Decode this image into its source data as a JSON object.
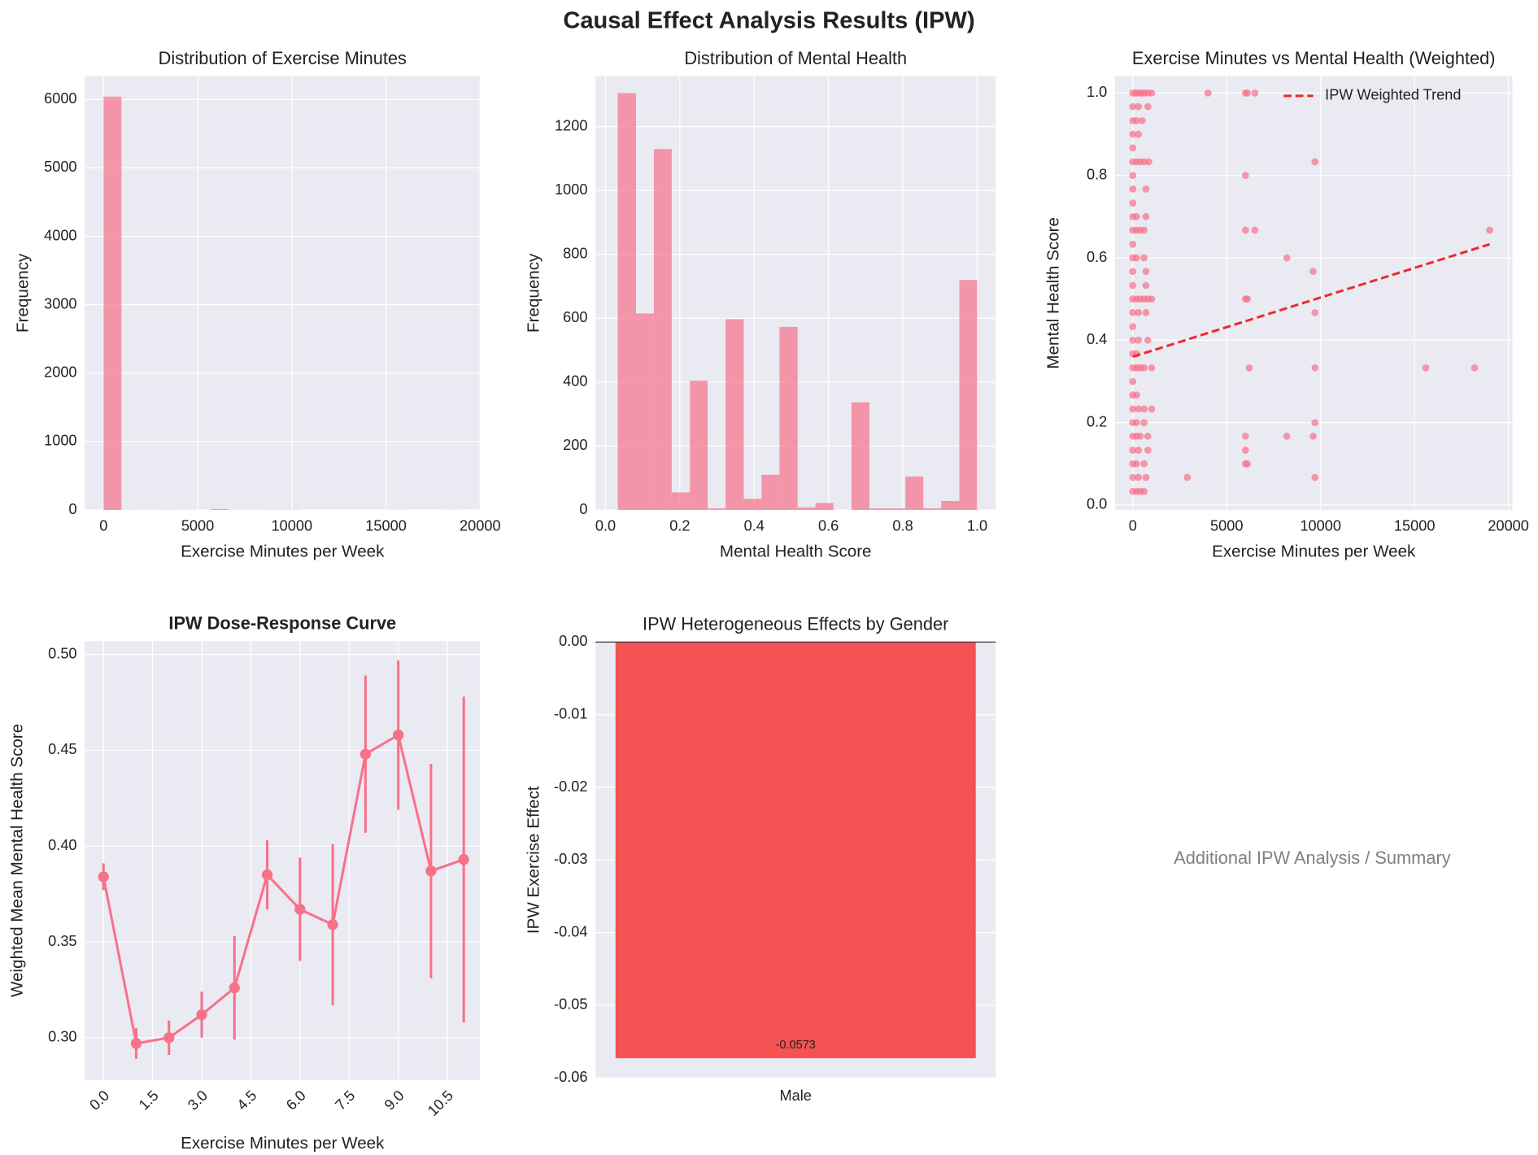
{
  "figure_title": "Causal Effect Analysis Results (IPW)",
  "annotation_panel": {
    "text": "Additional IPW Analysis / Summary"
  },
  "chart_data": [
    {
      "type": "histogram",
      "title": "Distribution of Exercise Minutes",
      "xlabel": "Exercise Minutes per Week",
      "ylabel": "Frequency",
      "bins": [
        0,
        950,
        1900,
        2850,
        3800,
        4750,
        5700,
        6650,
        7600,
        8550,
        9500,
        10450,
        11400,
        12350,
        13300,
        14250,
        15200,
        16150,
        17100,
        18050,
        19000
      ],
      "counts": [
        6040,
        2,
        1,
        2,
        1,
        0,
        12,
        1,
        1,
        3,
        3,
        0,
        0,
        0,
        0,
        0,
        1,
        0,
        0,
        1
      ],
      "color": "#f77189",
      "xlim": [
        -995,
        20000
      ],
      "ylim": [
        0,
        6340
      ],
      "xticks": [
        0,
        5000,
        10000,
        15000,
        20000
      ],
      "yticks": [
        0,
        1000,
        2000,
        3000,
        4000,
        5000,
        6000
      ],
      "grid": true
    },
    {
      "type": "histogram",
      "title": "Distribution of Mental Health",
      "xlabel": "Mental Health Score",
      "ylabel": "Frequency",
      "bins": [
        0.033,
        0.082,
        0.13,
        0.178,
        0.227,
        0.275,
        0.323,
        0.372,
        0.42,
        0.468,
        0.517,
        0.565,
        0.613,
        0.662,
        0.71,
        0.758,
        0.807,
        0.855,
        0.903,
        0.952,
        1.0
      ],
      "counts": [
        1305,
        615,
        1130,
        55,
        405,
        5,
        597,
        35,
        110,
        573,
        8,
        22,
        0,
        337,
        5,
        5,
        105,
        5,
        28,
        720
      ],
      "color": "#f77189",
      "xlim": [
        -0.027,
        1.05
      ],
      "ylim": [
        0,
        1358
      ],
      "xticks": [
        {
          "value": 0,
          "label": "0.0"
        },
        0.2,
        0.4,
        0.6,
        0.8,
        {
          "value": 1,
          "label": "1.0"
        }
      ],
      "yticks": [
        0,
        200,
        400,
        600,
        800,
        1000,
        1200
      ],
      "grid": true
    },
    {
      "type": "scatter",
      "title": "Exercise Minutes vs Mental Health (Weighted)",
      "xlabel": "Exercise Minutes per Week",
      "ylabel": "Mental Health Score",
      "series": [
        {
          "type": "scatter",
          "color": "#f77189",
          "x": [
            0,
            150,
            300,
            450,
            600,
            800,
            1000,
            0,
            300,
            800,
            0,
            200,
            500,
            0,
            300,
            0,
            0,
            200,
            400,
            600,
            850,
            0,
            0,
            700,
            0,
            0,
            200,
            700,
            0,
            200,
            400,
            600,
            0,
            0,
            200,
            600,
            0,
            700,
            0,
            700,
            0,
            200,
            400,
            600,
            800,
            1000,
            0,
            300,
            700,
            0,
            0,
            300,
            800,
            0,
            200,
            0,
            200,
            400,
            600,
            1000,
            0,
            0,
            200,
            0,
            300,
            600,
            1000,
            0,
            200,
            600,
            0,
            200,
            400,
            800,
            0,
            300,
            800,
            0,
            200,
            600,
            0,
            300,
            700,
            0,
            200,
            400,
            600,
            4000,
            6000,
            6100,
            6500,
            6000,
            9700,
            6000,
            6500,
            8200,
            9600,
            9700,
            6000,
            6100,
            6200,
            9700,
            15600,
            18200,
            19000,
            9700,
            6000,
            8200,
            9600,
            6000,
            6000,
            6100,
            2900,
            9700
          ],
          "values": [
            1,
            1,
            1,
            1,
            1,
            1,
            1,
            0.967,
            0.967,
            0.967,
            0.933,
            0.933,
            0.933,
            0.9,
            0.9,
            0.867,
            0.833,
            0.833,
            0.833,
            0.833,
            0.833,
            0.8,
            0.767,
            0.767,
            0.733,
            0.7,
            0.7,
            0.7,
            0.667,
            0.667,
            0.667,
            0.667,
            0.633,
            0.6,
            0.6,
            0.6,
            0.567,
            0.567,
            0.533,
            0.533,
            0.5,
            0.5,
            0.5,
            0.5,
            0.5,
            0.5,
            0.467,
            0.467,
            0.467,
            0.433,
            0.4,
            0.4,
            0.4,
            0.367,
            0.367,
            0.333,
            0.333,
            0.333,
            0.333,
            0.333,
            0.3,
            0.267,
            0.267,
            0.233,
            0.233,
            0.233,
            0.233,
            0.2,
            0.2,
            0.2,
            0.167,
            0.167,
            0.167,
            0.167,
            0.133,
            0.133,
            0.133,
            0.1,
            0.1,
            0.1,
            0.067,
            0.067,
            0.067,
            0.033,
            0.033,
            0.033,
            0.033,
            1,
            1,
            1,
            1,
            0.8,
            0.833,
            0.667,
            0.667,
            0.6,
            0.567,
            0.467,
            0.5,
            0.5,
            0.333,
            0.333,
            0.333,
            0.333,
            0.667,
            0.2,
            0.167,
            0.167,
            0.167,
            0.133,
            0.1,
            0.1,
            0.067,
            0.067
          ]
        },
        {
          "type": "line",
          "name": "IPW Weighted Trend",
          "linestyle": "dashed",
          "color": "#ee2a2a",
          "x": [
            0,
            19000
          ],
          "values": [
            0.36,
            0.633
          ]
        }
      ],
      "legend": "upper right",
      "xlim": [
        -945,
        20210
      ],
      "ylim": [
        -0.012,
        1.041
      ],
      "xticks": [
        0,
        5000,
        10000,
        15000,
        20000
      ],
      "yticks": [
        {
          "value": 0,
          "label": "0.0"
        },
        0.2,
        0.4,
        0.6,
        0.8,
        {
          "value": 1,
          "label": "1.0"
        }
      ],
      "grid": true
    },
    {
      "type": "line",
      "title": "IPW Dose-Response Curve",
      "title_weight": "bold",
      "xlabel": "Exercise Minutes per Week",
      "ylabel": "Weighted Mean Mental Health Score",
      "x": [
        0,
        1,
        2,
        3,
        4,
        5,
        6,
        7,
        8,
        9,
        10,
        11
      ],
      "values": [
        0.384,
        0.297,
        0.3,
        0.312,
        0.326,
        0.385,
        0.367,
        0.359,
        0.448,
        0.458,
        0.387,
        0.393
      ],
      "errors": [
        0.007,
        0.008,
        0.009,
        0.012,
        0.027,
        0.018,
        0.027,
        0.042,
        0.041,
        0.039,
        0.056,
        0.085
      ],
      "color": "#f77189",
      "xlim": [
        -0.57,
        11.5
      ],
      "ylim": [
        0.278,
        0.507
      ],
      "xticks": [
        {
          "value": 0,
          "label": "0.0"
        },
        1.5,
        {
          "value": 3,
          "label": "3.0"
        },
        4.5,
        {
          "value": 6,
          "label": "6.0"
        },
        7.5,
        {
          "value": 9,
          "label": "9.0"
        },
        10.5
      ],
      "xtick_rotation": 45,
      "yticks": [
        {
          "value": 0.3,
          "label": "0.30"
        },
        0.35,
        {
          "value": 0.4,
          "label": "0.40"
        },
        0.45,
        {
          "value": 0.5,
          "label": "0.50"
        }
      ],
      "grid": true
    },
    {
      "type": "bar",
      "title": "IPW Heterogeneous Effects by Gender",
      "ylabel": "IPW Exercise Effect",
      "categories": [
        "Male"
      ],
      "values": [
        -0.0573
      ],
      "value_labels": [
        "-0.0573"
      ],
      "color": "#f44a4a",
      "ylim": [
        -0.06,
        0
      ],
      "yticks": [
        {
          "value": 0,
          "label": "0.00"
        },
        -0.01,
        -0.02,
        -0.03,
        -0.04,
        -0.05,
        -0.06
      ],
      "zero_line": true,
      "grid": true
    }
  ]
}
